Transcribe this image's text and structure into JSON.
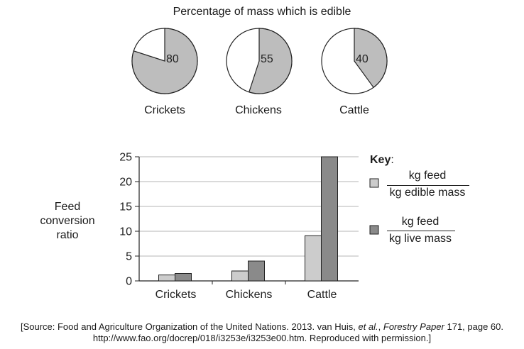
{
  "chart_data": [
    {
      "type": "pie",
      "title": "Percentage of mass which is edible",
      "categories": [
        "Crickets",
        "Chickens",
        "Cattle"
      ],
      "values": [
        80,
        55,
        40
      ],
      "labels": [
        "80",
        "55",
        "40"
      ],
      "colors": {
        "edible": "#bdbdbd",
        "rest": "#ffffff"
      }
    },
    {
      "type": "bar",
      "title": "",
      "ylabel": "Feed conversion ratio",
      "ylabel_lines": [
        "Feed",
        "conversion",
        "ratio"
      ],
      "xlabel": "",
      "categories": [
        "Crickets",
        "Chickens",
        "Cattle"
      ],
      "ylim": [
        0,
        25
      ],
      "yticks": [
        0,
        5,
        10,
        15,
        20,
        25
      ],
      "ytick_labels": [
        "0",
        "5",
        "10",
        "15",
        "20",
        "25"
      ],
      "grid": true,
      "legend_position": "right",
      "series": [
        {
          "name": "kg feed / kg edible mass",
          "values": [
            1.2,
            2.0,
            9.1
          ],
          "color": "#cccccc"
        },
        {
          "name": "kg feed / kg live mass",
          "values": [
            1.5,
            4.0,
            25.0
          ],
          "color": "#8a8a8a"
        }
      ]
    }
  ],
  "key": {
    "title": "Key",
    "title_suffix": ":",
    "items": [
      {
        "numerator": "kg feed",
        "denominator": "kg edible mass"
      },
      {
        "numerator": "kg feed",
        "denominator": "kg live mass"
      }
    ]
  },
  "source": {
    "line1_pre": "[Source: Food and Agriculture Organization of the United Nations. 2013. van Huis, ",
    "line1_etal": "et al.",
    "line1_mid": ", ",
    "line1_journal": "Forestry Paper",
    "line1_post": " 171, page 60.",
    "line2": "http://www.fao.org/docrep/018/i3253e/i3253e00.htm. Reproduced with permission.]"
  }
}
